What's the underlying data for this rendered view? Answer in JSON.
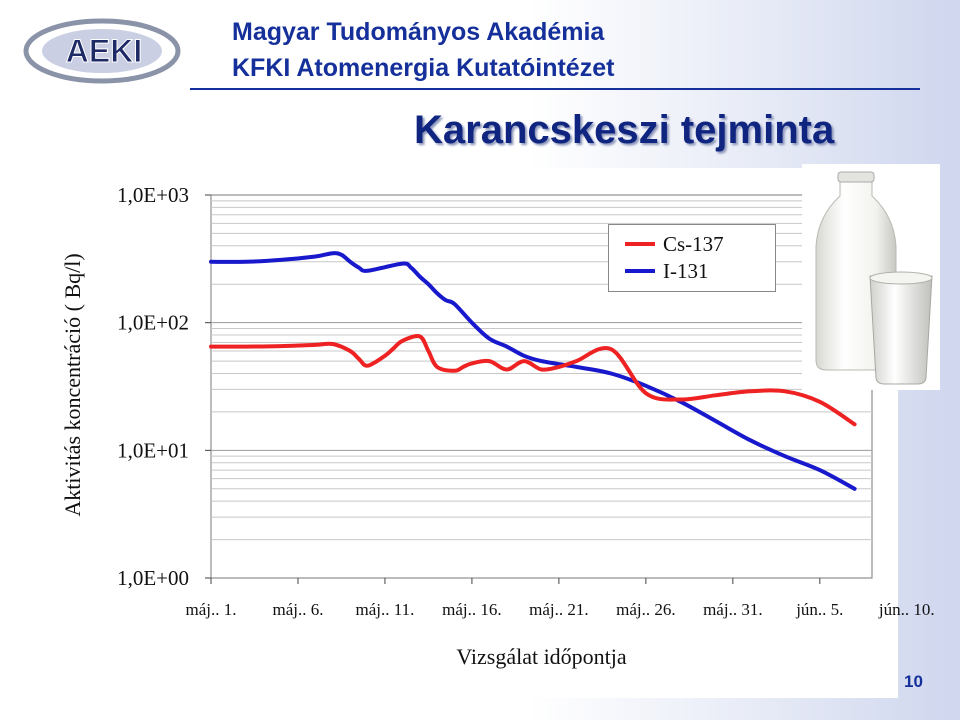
{
  "header": {
    "logo_text": "AEKI",
    "org_line1": "Magyar Tudományos Akadémia",
    "org_line2": "KFKI Atomenergia Kutatóintézet",
    "title": "Karancskeszi tejminta"
  },
  "page_number": "10",
  "colors": {
    "cs137": "#ee2222",
    "i131": "#1818cc",
    "brand": "#15309a"
  },
  "chart_data": {
    "type": "line",
    "title": "Karancskeszi tejminta",
    "xlabel": "Vizsgálat időpontja",
    "ylabel": "Aktivitás koncentráció ( Bq/l)",
    "yscale": "log",
    "ylim": [
      1,
      1000
    ],
    "ytick_labels": [
      "1,0E+03",
      "1,0E+02",
      "1,0E+01",
      "1,0E+00"
    ],
    "ytick_values": [
      1000,
      100,
      10,
      1
    ],
    "xlim": [
      1,
      39
    ],
    "x_unit": "day of May (máj. 1. = 1)",
    "xtick_labels": [
      "máj.. 1.",
      "máj.. 6.",
      "máj.. 11.",
      "máj.. 16.",
      "máj.. 21.",
      "máj.. 26.",
      "máj.. 31.",
      "jún.. 5.",
      "jún.. 10."
    ],
    "xtick_values": [
      1,
      6,
      11,
      16,
      21,
      26,
      31,
      36,
      41
    ],
    "grid": true,
    "legend_position": "top-right",
    "series": [
      {
        "name": "Cs-137",
        "color_key": "cs137",
        "x": [
          1,
          3,
          5,
          7,
          8,
          9,
          9.5,
          10,
          11,
          11.5,
          12,
          13,
          13.5,
          14,
          15,
          15.5,
          16,
          17,
          18,
          19,
          20,
          21,
          22,
          24,
          26,
          28,
          30,
          32,
          34,
          36,
          38
        ],
        "y": [
          65,
          65,
          65.5,
          67,
          68,
          60,
          52,
          46,
          55,
          63,
          72,
          78,
          60,
          45,
          42,
          45,
          48,
          50,
          43,
          50,
          43,
          45,
          50,
          62,
          28,
          25,
          27,
          29,
          29,
          24,
          16
        ]
      },
      {
        "name": "I-131",
        "color_key": "i131",
        "x": [
          1,
          3,
          5,
          7,
          8,
          8.5,
          9,
          9.5,
          10,
          12,
          12.5,
          13,
          13.5,
          14,
          14.5,
          15,
          16,
          17,
          18,
          19,
          20,
          22,
          24,
          26,
          28,
          30,
          32,
          34,
          36,
          38
        ],
        "y": [
          300,
          300,
          310,
          330,
          350,
          340,
          300,
          270,
          255,
          290,
          270,
          230,
          200,
          170,
          150,
          140,
          100,
          75,
          65,
          55,
          50,
          45,
          40,
          32,
          24,
          17,
          12,
          9,
          7,
          5
        ]
      }
    ]
  }
}
